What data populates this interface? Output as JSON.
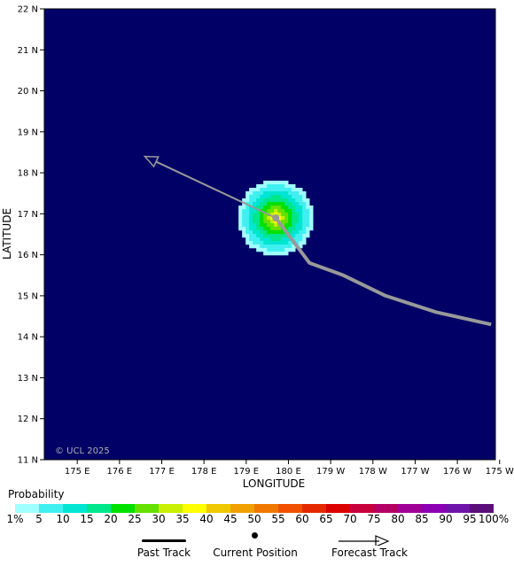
{
  "map": {
    "background": "#000066",
    "axis_labels": {
      "x": "LONGITUDE",
      "y": "LATITUDE"
    },
    "lat_ticks": [
      "22 N",
      "21 N",
      "20 N",
      "19 N",
      "18 N",
      "17 N",
      "16 N",
      "15 N",
      "14 N",
      "13 N",
      "12 N",
      "11 N"
    ],
    "lon_ticks": [
      "175 E",
      "176 E",
      "177 E",
      "178 E",
      "179 E",
      "180 E",
      "179 W",
      "178 W",
      "177 W",
      "176 W",
      "175 W"
    ],
    "watermark": "© UCL 2025",
    "current_position": {
      "lon": 179.7,
      "lat": 16.9
    },
    "past_track": [
      {
        "lon": 179.7,
        "lat": 16.9
      },
      {
        "lon": 180.5,
        "lat": 15.8
      },
      {
        "lon": 181.3,
        "lat": 15.5
      },
      {
        "lon": 182.3,
        "lat": 15.0
      },
      {
        "lon": 183.5,
        "lat": 14.6
      },
      {
        "lon": 184.8,
        "lat": 14.3
      }
    ],
    "forecast_track": [
      {
        "lon": 179.7,
        "lat": 16.9
      },
      {
        "lon": 176.6,
        "lat": 18.4
      }
    ],
    "probability_center": {
      "lon": 179.7,
      "lat": 16.9
    },
    "colors": {
      "track": "#999999",
      "axis": "#000000"
    }
  },
  "legend": {
    "title": "Probability",
    "tick_labels": [
      "1%",
      "5",
      "10",
      "15",
      "20",
      "25",
      "30",
      "35",
      "40",
      "45",
      "50",
      "55",
      "60",
      "65",
      "70",
      "75",
      "80",
      "85",
      "90",
      "95",
      "100%"
    ],
    "colors": [
      "#a0ffff",
      "#40f0f0",
      "#00e6d2",
      "#00e68c",
      "#00e100",
      "#64e100",
      "#c8f000",
      "#ffff00",
      "#f0c800",
      "#f0a000",
      "#f07800",
      "#f05000",
      "#e62800",
      "#dc0000",
      "#c8003c",
      "#b40064",
      "#a00096",
      "#8c00b4",
      "#6e14aa",
      "#5a0f78"
    ]
  },
  "key": {
    "past_track": "Past Track",
    "current_position": "Current Position",
    "forecast_track": "Forecast Track"
  }
}
